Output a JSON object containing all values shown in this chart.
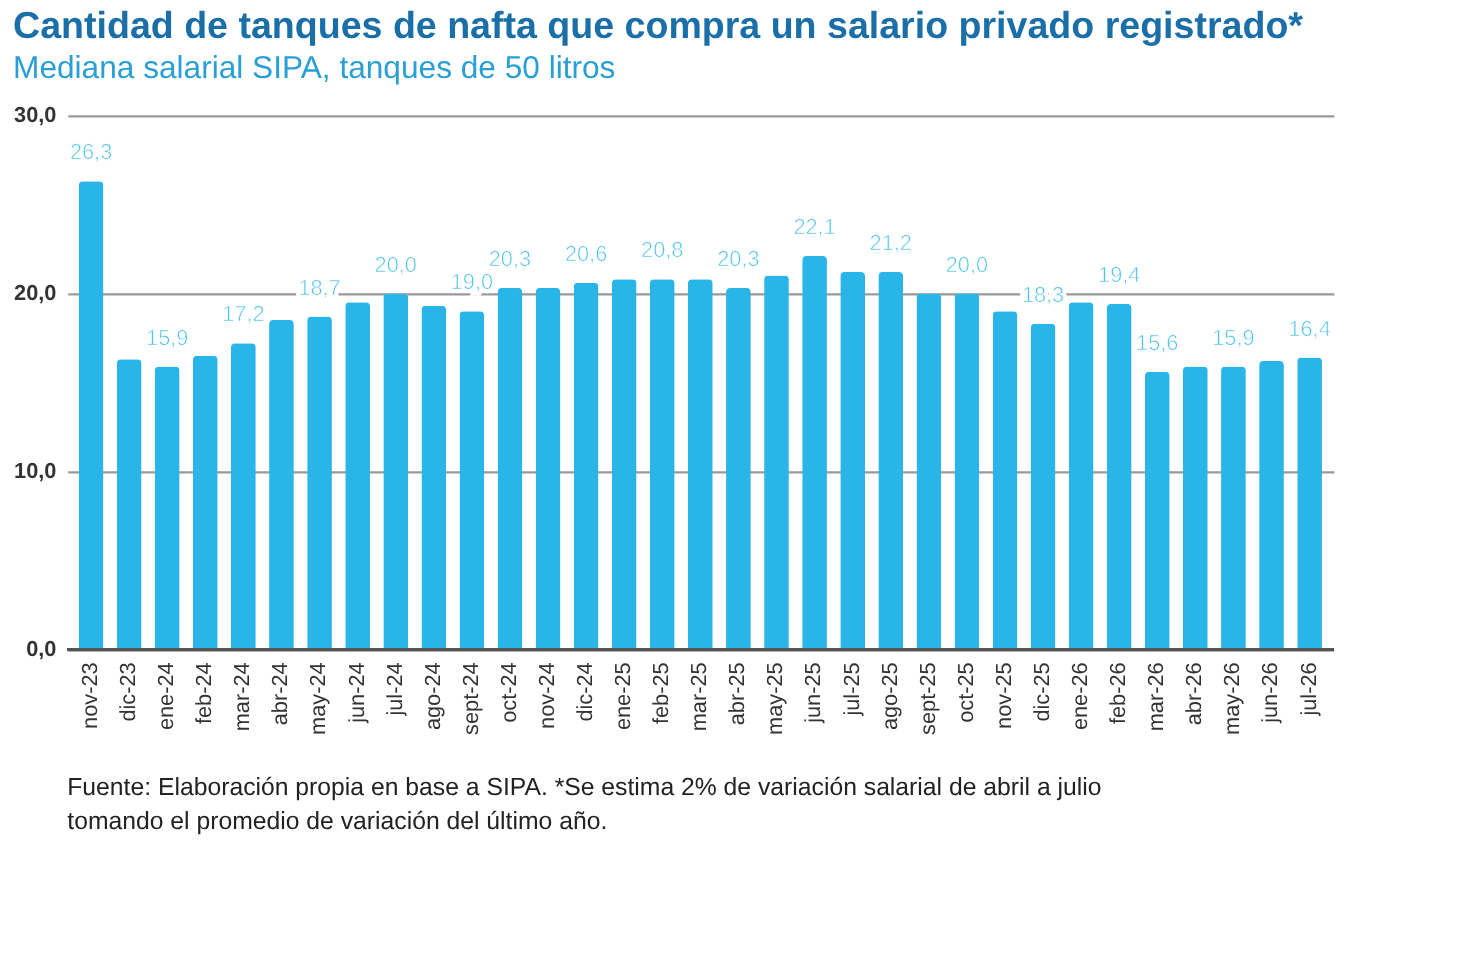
{
  "chart_data": {
    "type": "bar",
    "title": "Cantidad de tanques de nafta que compra un salario privado registrado*",
    "subtitle": "Mediana salarial SIPA, tanques de 50 litros",
    "categories": [
      "nov-23",
      "dic-23",
      "ene-24",
      "feb-24",
      "mar-24",
      "abr-24",
      "may-24",
      "jun-24",
      "jul-24",
      "ago-24",
      "sept-24",
      "oct-24",
      "nov-24",
      "dic-24",
      "ene-25",
      "feb-25",
      "mar-25",
      "abr-25",
      "may-25",
      "jun-25",
      "jul-25",
      "ago-25",
      "sept-25",
      "oct-25",
      "nov-25",
      "dic-25",
      "ene-26",
      "feb-26",
      "mar-26",
      "abr-26",
      "may-26",
      "jun-26",
      "jul-26"
    ],
    "values": [
      26.3,
      16.3,
      15.9,
      16.5,
      17.2,
      18.5,
      18.7,
      19.5,
      20.0,
      19.3,
      19.0,
      20.3,
      20.3,
      20.6,
      20.8,
      20.8,
      20.8,
      20.3,
      21.0,
      22.1,
      21.2,
      21.2,
      20.0,
      20.0,
      19.0,
      18.3,
      19.5,
      19.4,
      15.6,
      15.9,
      15.9,
      16.2,
      16.4
    ],
    "value_labels": [
      "26,3",
      null,
      "15,9",
      null,
      "17,2",
      null,
      "18,7",
      null,
      "20,0",
      null,
      "19,0",
      "20,3",
      null,
      "20,6",
      null,
      "20,8",
      null,
      "20,3",
      null,
      "22,1",
      null,
      "21,2",
      null,
      "20,0",
      null,
      "18,3",
      null,
      "19,4",
      "15,6",
      null,
      "15,9",
      null,
      "16,4"
    ],
    "color": "#29b5e8",
    "ylim": [
      0,
      30
    ],
    "yticks": [
      {
        "value": 0,
        "label": "0,0"
      },
      {
        "value": 10,
        "label": "10,0"
      },
      {
        "value": 20,
        "label": "20,0"
      },
      {
        "value": 30,
        "label": "30,0"
      }
    ],
    "grid": "y",
    "annotations": [
      "Fuente: Elaboración propia en base a SIPA. *Se estima 2% de variación salarial de abril a julio",
      "tomando el promedio de variación del último año."
    ]
  }
}
